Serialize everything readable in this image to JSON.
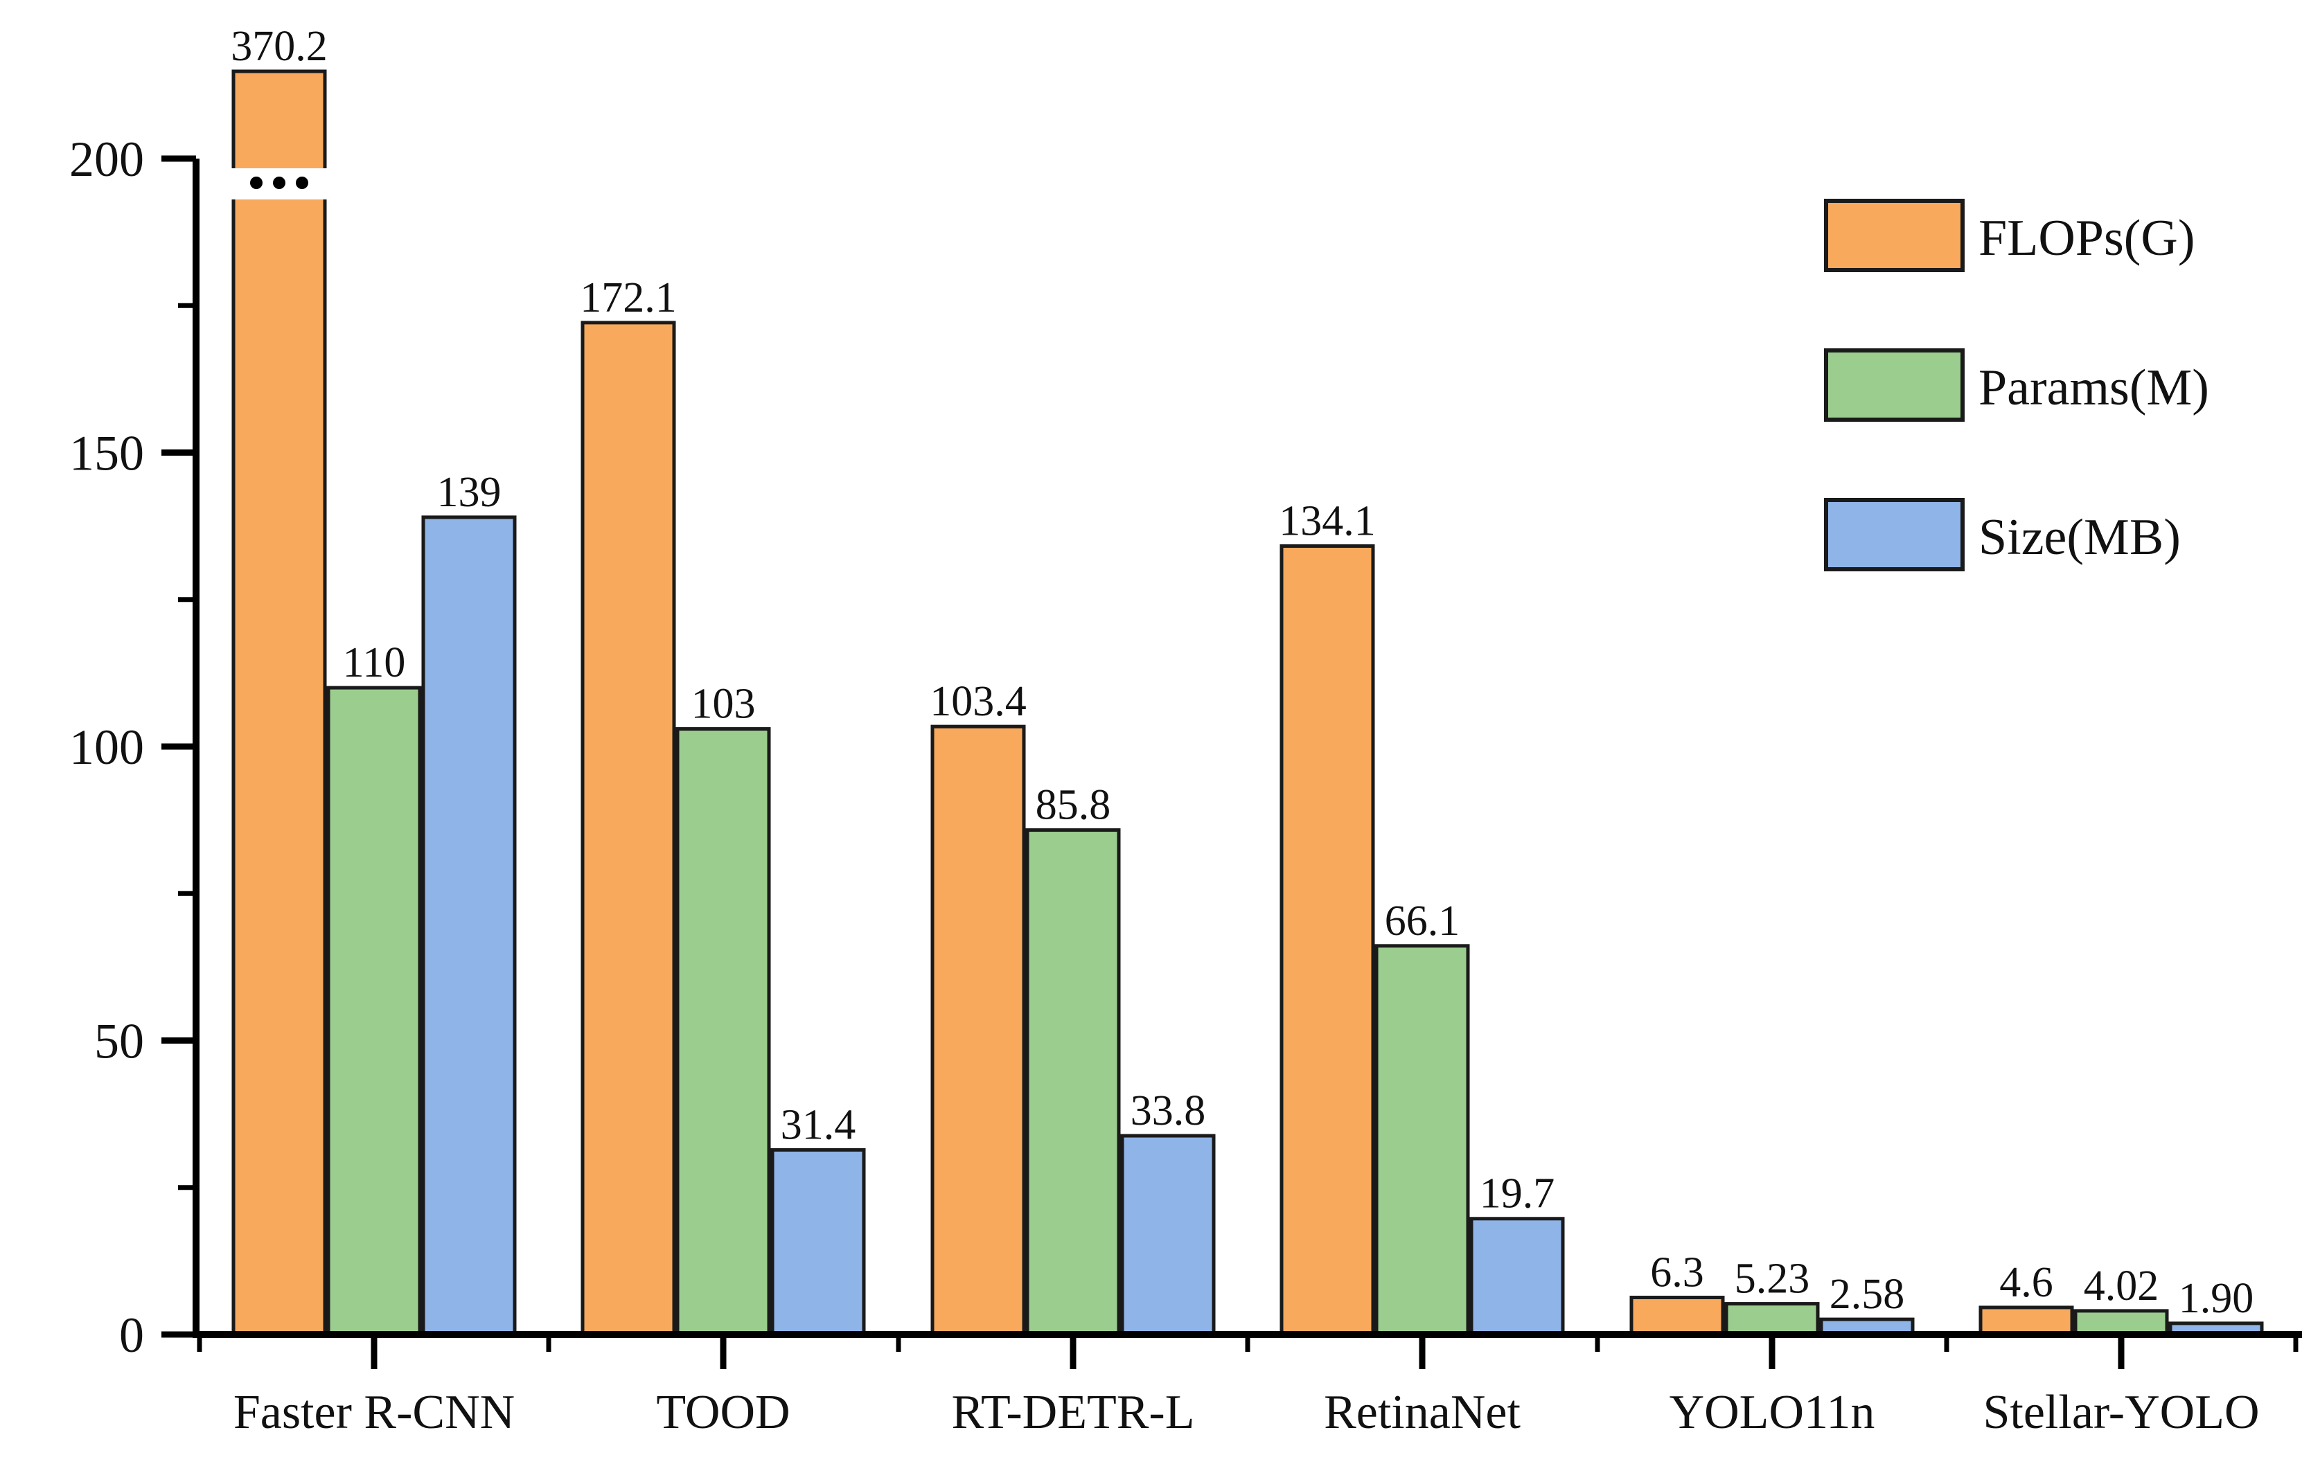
{
  "chart_data": {
    "type": "bar",
    "title": "",
    "xlabel": "",
    "ylabel": "",
    "categories": [
      "Faster R-CNN",
      "TOOD",
      "RT-DETR-L",
      "RetinaNet",
      "YOLO11n",
      "Stellar-YOLO"
    ],
    "series": [
      {
        "name": "FLOPs(G)",
        "color": "#F8A95C",
        "values": [
          370.2,
          172.1,
          103.4,
          134.1,
          6.3,
          4.6
        ],
        "labels": [
          "370.2",
          "172.1",
          "103.4",
          "134.1",
          "6.3",
          "4.6"
        ]
      },
      {
        "name": "Params(M)",
        "color": "#9BCE8E",
        "values": [
          110,
          103,
          85.8,
          66.1,
          5.23,
          4.02
        ],
        "labels": [
          "110",
          "103",
          "85.8",
          "66.1",
          "5.23",
          "4.02"
        ]
      },
      {
        "name": "Size(MB)",
        "color": "#8FB4E8",
        "values": [
          139,
          31.4,
          33.8,
          19.7,
          2.58,
          1.9
        ],
        "labels": [
          "139",
          "31.4",
          "33.8",
          "19.7",
          "2.58",
          "1.90"
        ]
      }
    ],
    "y_axis": {
      "ylim": [
        0,
        200
      ],
      "major_ticks": [
        0,
        50,
        100,
        150,
        200
      ],
      "major_tick_labels": [
        "0",
        "50",
        "100",
        "150",
        "200"
      ],
      "minor_ticks": [
        25,
        75,
        125,
        175
      ]
    },
    "axis_break": {
      "series": "FLOPs(G)",
      "category": "Faster R-CNN",
      "true_value": 370.2,
      "marker_dots": 3
    },
    "legend": {
      "position": "upper right",
      "entries": [
        "FLOPs(G)",
        "Params(M)",
        "Size(MB)"
      ]
    },
    "grid": false,
    "colors": {
      "bar_edge": "#1A1A1A",
      "axis": "#000000",
      "text": "#111111",
      "background": "#FFFFFF",
      "break_dots": "#000000"
    }
  }
}
